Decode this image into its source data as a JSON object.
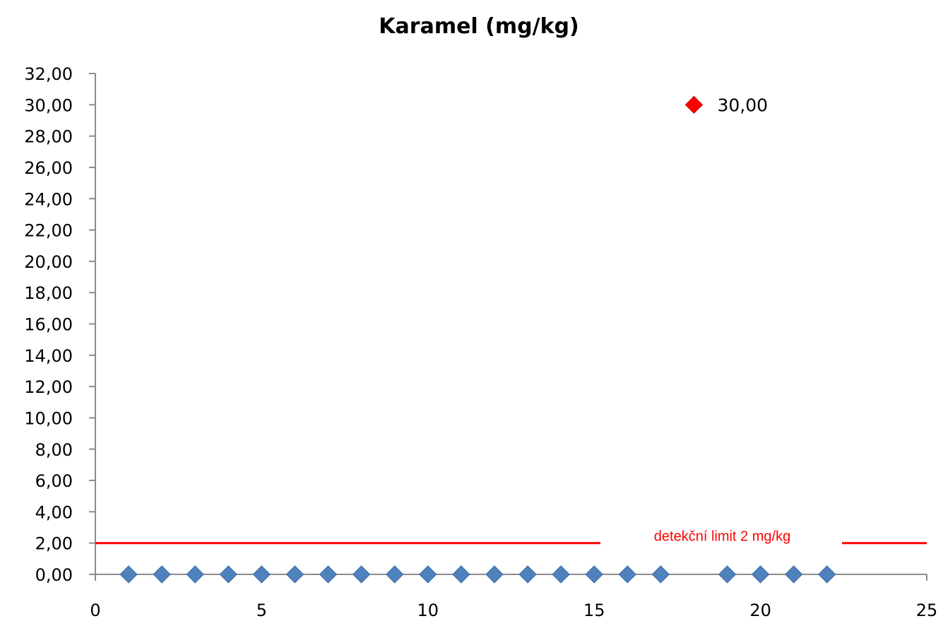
{
  "chart_data": {
    "type": "scatter",
    "title": "Karamel (mg/kg)",
    "xlabel": "",
    "ylabel": "",
    "xlim": [
      0,
      25
    ],
    "ylim": [
      0,
      32
    ],
    "x_ticks": [
      "0",
      "5",
      "10",
      "15",
      "20",
      "25"
    ],
    "y_ticks": [
      "0,00",
      "2,00",
      "4,00",
      "6,00",
      "8,00",
      "10,00",
      "12,00",
      "14,00",
      "16,00",
      "18,00",
      "20,00",
      "22,00",
      "24,00",
      "26,00",
      "28,00",
      "30,00",
      "32,00"
    ],
    "grid": false,
    "legend": "none",
    "series": [
      {
        "color": "#4F81BD",
        "marker": "diamond",
        "points": [
          {
            "x": 1,
            "y": 0
          },
          {
            "x": 2,
            "y": 0
          },
          {
            "x": 3,
            "y": 0
          },
          {
            "x": 4,
            "y": 0
          },
          {
            "x": 5,
            "y": 0
          },
          {
            "x": 6,
            "y": 0
          },
          {
            "x": 7,
            "y": 0
          },
          {
            "x": 8,
            "y": 0
          },
          {
            "x": 9,
            "y": 0
          },
          {
            "x": 10,
            "y": 0
          },
          {
            "x": 11,
            "y": 0
          },
          {
            "x": 12,
            "y": 0
          },
          {
            "x": 13,
            "y": 0
          },
          {
            "x": 14,
            "y": 0
          },
          {
            "x": 15,
            "y": 0
          },
          {
            "x": 16,
            "y": 0
          },
          {
            "x": 17,
            "y": 0
          },
          {
            "x": 19,
            "y": 0
          },
          {
            "x": 20,
            "y": 0
          },
          {
            "x": 21,
            "y": 0
          },
          {
            "x": 22,
            "y": 0
          }
        ]
      },
      {
        "color": "#FF0000",
        "marker": "diamond",
        "points": [
          {
            "x": 18,
            "y": 30,
            "label": "30,00"
          }
        ]
      }
    ],
    "reference_line": {
      "y": 2,
      "x_range": [
        0,
        25
      ],
      "color": "#FF0000",
      "label": "detekční limit 2 mg/kg"
    }
  }
}
